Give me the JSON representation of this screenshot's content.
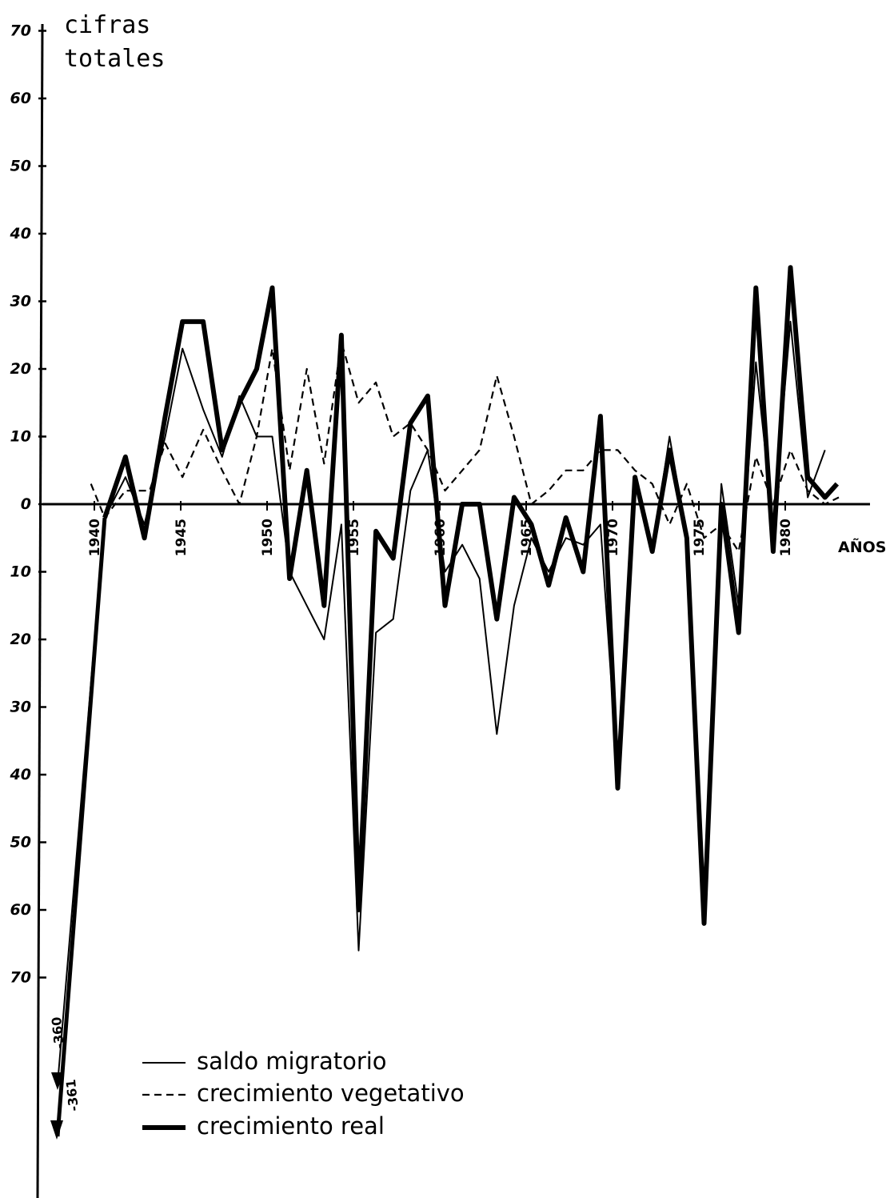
{
  "chart_data": {
    "type": "line",
    "ylabel_line1": "cifras",
    "ylabel_line2": "totales",
    "xlabel": "AÑOS",
    "y_ticks": [
      {
        "value": 70,
        "label": "70"
      },
      {
        "value": 60,
        "label": "60"
      },
      {
        "value": 50,
        "label": "50"
      },
      {
        "value": 40,
        "label": "40"
      },
      {
        "value": 30,
        "label": "30"
      },
      {
        "value": 20,
        "label": "20"
      },
      {
        "value": 10,
        "label": "10"
      },
      {
        "value": 0,
        "label": "0"
      },
      {
        "value": -10,
        "label": "10"
      },
      {
        "value": -20,
        "label": "20"
      },
      {
        "value": -30,
        "label": "30"
      },
      {
        "value": -40,
        "label": "40"
      },
      {
        "value": -50,
        "label": "50"
      },
      {
        "value": -60,
        "label": "60"
      },
      {
        "value": -70,
        "label": "70"
      }
    ],
    "x_ticks": [
      {
        "value": 1940,
        "label": "1940"
      },
      {
        "value": 1945,
        "label": "1945"
      },
      {
        "value": 1950,
        "label": "1950"
      },
      {
        "value": 1955,
        "label": "1955"
      },
      {
        "value": 1960,
        "label": "1960"
      },
      {
        "value": 1965,
        "label": "1965"
      },
      {
        "value": 1970,
        "label": "1970"
      },
      {
        "value": 1975,
        "label": "1975"
      },
      {
        "value": 1980,
        "label": "1980"
      }
    ],
    "xlim": [
      1936.8,
      1983.3
    ],
    "ylim": [
      -97,
      72
    ],
    "grid": false,
    "legend_position": "bottom-left",
    "series": [
      {
        "name": "saldo migratorio",
        "style": "thin",
        "points": [
          [
            1940.6,
            -2
          ],
          [
            1941.8,
            4
          ],
          [
            1942.9,
            -3
          ],
          [
            1944.1,
            10
          ],
          [
            1945.1,
            23
          ],
          [
            1946.3,
            14
          ],
          [
            1947.4,
            7
          ],
          [
            1948.4,
            16
          ],
          [
            1949.4,
            10
          ],
          [
            1950.3,
            10
          ],
          [
            1951.3,
            -10
          ],
          [
            1952.3,
            -15
          ],
          [
            1953.3,
            -20
          ],
          [
            1954.3,
            -3
          ],
          [
            1955.3,
            -66
          ],
          [
            1956.3,
            -19
          ],
          [
            1957.3,
            -17
          ],
          [
            1958.3,
            2
          ],
          [
            1959.3,
            8
          ],
          [
            1960.3,
            -10
          ],
          [
            1961.3,
            -6
          ],
          [
            1962.3,
            -11
          ],
          [
            1963.3,
            -34
          ],
          [
            1964.3,
            -15
          ],
          [
            1965.3,
            -5
          ],
          [
            1966.3,
            -10
          ],
          [
            1967.3,
            -5
          ],
          [
            1968.3,
            -6
          ],
          [
            1969.3,
            -3
          ],
          [
            1970.3,
            -40
          ],
          [
            1971.3,
            4
          ],
          [
            1972.3,
            -7
          ],
          [
            1973.3,
            10
          ],
          [
            1974.3,
            -5
          ],
          [
            1975.3,
            -57
          ],
          [
            1976.3,
            3
          ],
          [
            1977.3,
            -15
          ],
          [
            1978.3,
            21
          ],
          [
            1979.3,
            -3
          ],
          [
            1980.3,
            27
          ],
          [
            1981.3,
            1
          ],
          [
            1982.3,
            8
          ]
        ]
      },
      {
        "name": "crecimiento vegetativo",
        "style": "dashed",
        "points": [
          [
            1939.8,
            3
          ],
          [
            1940.6,
            -2
          ],
          [
            1941.8,
            2
          ],
          [
            1943.2,
            2
          ],
          [
            1944.1,
            9
          ],
          [
            1945.1,
            4
          ],
          [
            1946.3,
            11
          ],
          [
            1947.4,
            5
          ],
          [
            1948.4,
            0
          ],
          [
            1949.4,
            10
          ],
          [
            1950.3,
            23
          ],
          [
            1951.3,
            5
          ],
          [
            1952.3,
            20
          ],
          [
            1953.3,
            6
          ],
          [
            1954.3,
            24
          ],
          [
            1955.3,
            15
          ],
          [
            1956.3,
            18
          ],
          [
            1957.3,
            10
          ],
          [
            1958.3,
            12
          ],
          [
            1959.3,
            8
          ],
          [
            1960.3,
            2
          ],
          [
            1961.3,
            5
          ],
          [
            1962.3,
            8
          ],
          [
            1963.3,
            19
          ],
          [
            1964.3,
            10
          ],
          [
            1965.3,
            0
          ],
          [
            1966.3,
            2
          ],
          [
            1967.3,
            5
          ],
          [
            1968.3,
            5
          ],
          [
            1969.3,
            8
          ],
          [
            1970.3,
            8
          ],
          [
            1971.3,
            5
          ],
          [
            1972.3,
            3
          ],
          [
            1973.3,
            -3
          ],
          [
            1974.3,
            3
          ],
          [
            1975.3,
            -5
          ],
          [
            1976.3,
            -3
          ],
          [
            1977.3,
            -7
          ],
          [
            1978.3,
            7
          ],
          [
            1979.3,
            0
          ],
          [
            1980.3,
            8
          ],
          [
            1981.3,
            2
          ],
          [
            1982.3,
            0
          ],
          [
            1983.1,
            1
          ]
        ]
      },
      {
        "name": "crecimiento real",
        "style": "thick",
        "points": [
          [
            1940.6,
            -2
          ],
          [
            1941.8,
            7
          ],
          [
            1942.9,
            -5
          ],
          [
            1944.1,
            13
          ],
          [
            1945.1,
            27
          ],
          [
            1946.3,
            27
          ],
          [
            1947.4,
            8
          ],
          [
            1948.4,
            15
          ],
          [
            1949.4,
            20
          ],
          [
            1950.3,
            32
          ],
          [
            1951.3,
            -11
          ],
          [
            1952.3,
            5
          ],
          [
            1953.3,
            -15
          ],
          [
            1954.3,
            25
          ],
          [
            1955.3,
            -60
          ],
          [
            1956.3,
            -4
          ],
          [
            1957.3,
            -8
          ],
          [
            1958.3,
            12
          ],
          [
            1959.3,
            16
          ],
          [
            1960.3,
            -15
          ],
          [
            1961.3,
            0
          ],
          [
            1962.3,
            0
          ],
          [
            1963.3,
            -17
          ],
          [
            1964.3,
            1
          ],
          [
            1965.3,
            -3
          ],
          [
            1966.3,
            -12
          ],
          [
            1967.3,
            -2
          ],
          [
            1968.3,
            -10
          ],
          [
            1969.3,
            13
          ],
          [
            1970.3,
            -42
          ],
          [
            1971.3,
            4
          ],
          [
            1972.3,
            -7
          ],
          [
            1973.3,
            8
          ],
          [
            1974.3,
            -5
          ],
          [
            1975.3,
            -62
          ],
          [
            1976.3,
            0
          ],
          [
            1977.3,
            -19
          ],
          [
            1978.3,
            32
          ],
          [
            1979.3,
            -7
          ],
          [
            1980.3,
            35
          ],
          [
            1981.3,
            4
          ],
          [
            1982.3,
            1
          ],
          [
            1983.0,
            3
          ]
        ]
      }
    ],
    "annotations": [
      {
        "text": "-360",
        "value": -360
      },
      {
        "text": "-361",
        "value": -361
      }
    ],
    "legend": [
      {
        "label": "saldo migratorio",
        "style": "thin"
      },
      {
        "label": "crecimiento vegetativo",
        "style": "dashed"
      },
      {
        "label": "crecimiento real",
        "style": "thick"
      }
    ]
  }
}
